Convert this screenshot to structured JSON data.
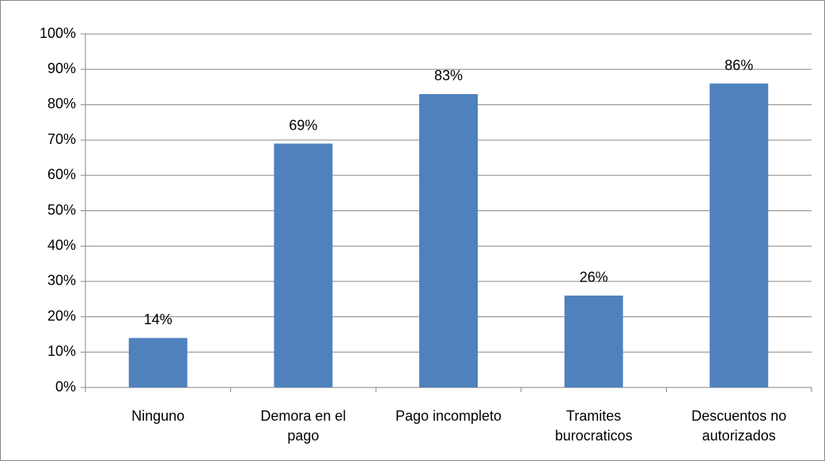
{
  "chart_data": {
    "type": "bar",
    "categories": [
      "Ninguno",
      "Demora en el pago",
      "Pago incompleto",
      "Tramites burocraticos",
      "Descuentos no autorizados"
    ],
    "values": [
      14,
      69,
      83,
      26,
      86
    ],
    "value_labels": [
      "14%",
      "69%",
      "83%",
      "26%",
      "86%"
    ],
    "color": "#4f81bd",
    "ylim": [
      0,
      100
    ],
    "yticks": [
      {
        "value": 0,
        "label": "0%"
      },
      {
        "value": 10,
        "label": "10%"
      },
      {
        "value": 20,
        "label": "20%"
      },
      {
        "value": 30,
        "label": "30%"
      },
      {
        "value": 40,
        "label": "40%"
      },
      {
        "value": 50,
        "label": "50%"
      },
      {
        "value": 60,
        "label": "60%"
      },
      {
        "value": 70,
        "label": "70%"
      },
      {
        "value": 80,
        "label": "80%"
      },
      {
        "value": 90,
        "label": "90%"
      },
      {
        "value": 100,
        "label": "100%"
      }
    ],
    "grid": true
  }
}
